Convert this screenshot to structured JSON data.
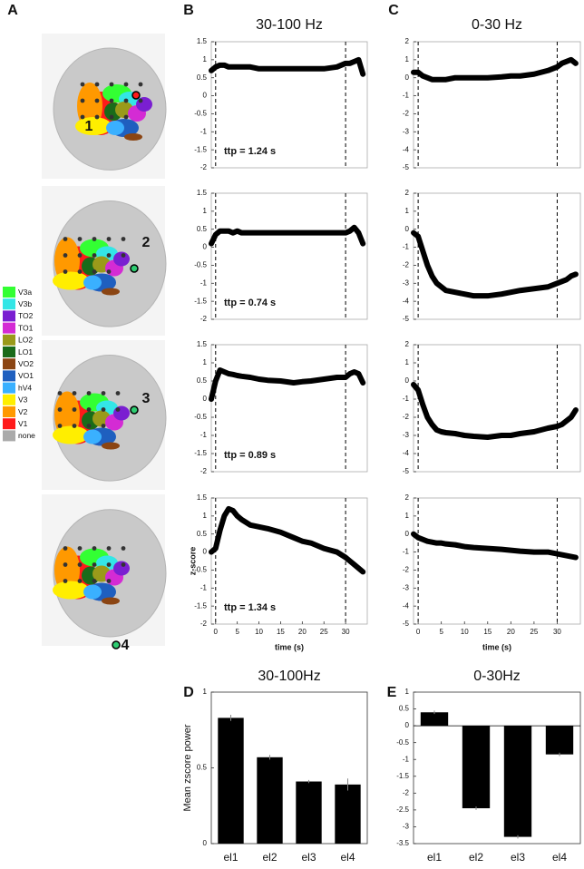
{
  "panel_labels": [
    "A",
    "B",
    "C",
    "D",
    "E"
  ],
  "electrodes": [
    "1",
    "2",
    "3",
    "4"
  ],
  "brain_legend": [
    {
      "label": "V3a",
      "color": "#33ff33"
    },
    {
      "label": "V3b",
      "color": "#33e6e6"
    },
    {
      "label": "TO2",
      "color": "#7a1fd1"
    },
    {
      "label": "TO1",
      "color": "#d42bd4"
    },
    {
      "label": "LO2",
      "color": "#9a9a1a"
    },
    {
      "label": "LO1",
      "color": "#1a6b1a"
    },
    {
      "label": "VO2",
      "color": "#8b4513"
    },
    {
      "label": "VO1",
      "color": "#1f5fbf"
    },
    {
      "label": "hV4",
      "color": "#3ab0ff"
    },
    {
      "label": "V3",
      "color": "#ffee00"
    },
    {
      "label": "V2",
      "color": "#ff9900"
    },
    {
      "label": "V1",
      "color": "#ff1a1a"
    },
    {
      "label": "none",
      "color": "#aaaaaa"
    }
  ],
  "chart_data": [
    {
      "type": "line",
      "title": "30-100 Hz",
      "annotation": "ttp = 1.24 s",
      "color": "#000000",
      "x": [
        -1,
        0,
        1,
        2,
        3,
        4,
        5,
        6,
        8,
        10,
        12,
        15,
        18,
        20,
        22,
        25,
        28,
        30,
        31,
        32,
        33,
        34
      ],
      "values": [
        0.7,
        0.8,
        0.85,
        0.85,
        0.8,
        0.8,
        0.8,
        0.8,
        0.8,
        0.75,
        0.75,
        0.75,
        0.75,
        0.75,
        0.75,
        0.75,
        0.8,
        0.9,
        0.9,
        0.95,
        1.0,
        0.6
      ],
      "vlines": [
        0,
        30
      ],
      "xlim": [
        -1,
        35
      ],
      "ylim": [
        -2,
        1.5
      ],
      "yticks": [
        -2,
        -1.5,
        -1,
        -0.5,
        0,
        0.5,
        1,
        1.5
      ]
    },
    {
      "type": "line",
      "annotation": "ttp = 0.74 s",
      "color": "#000000",
      "x": [
        -1,
        0,
        1,
        2,
        3,
        4,
        5,
        6,
        8,
        10,
        12,
        15,
        18,
        20,
        22,
        25,
        28,
        30,
        31,
        32,
        33,
        34
      ],
      "values": [
        0.1,
        0.35,
        0.45,
        0.45,
        0.45,
        0.4,
        0.45,
        0.4,
        0.4,
        0.4,
        0.4,
        0.4,
        0.4,
        0.4,
        0.4,
        0.4,
        0.4,
        0.4,
        0.45,
        0.55,
        0.4,
        0.1
      ],
      "vlines": [
        0,
        30
      ],
      "xlim": [
        -1,
        35
      ],
      "ylim": [
        -2,
        1.5
      ],
      "yticks": [
        -2,
        -1.5,
        -1,
        -0.5,
        0,
        0.5,
        1,
        1.5
      ]
    },
    {
      "type": "line",
      "annotation": "ttp = 0.89 s",
      "color": "#000000",
      "x": [
        -1,
        0,
        1,
        2,
        3,
        4,
        5,
        6,
        8,
        10,
        12,
        15,
        18,
        20,
        22,
        25,
        28,
        30,
        31,
        32,
        33,
        34
      ],
      "values": [
        0.0,
        0.5,
        0.8,
        0.75,
        0.7,
        0.68,
        0.65,
        0.63,
        0.6,
        0.55,
        0.52,
        0.5,
        0.45,
        0.48,
        0.5,
        0.55,
        0.6,
        0.6,
        0.7,
        0.75,
        0.7,
        0.45
      ],
      "vlines": [
        0,
        30
      ],
      "xlim": [
        -1,
        35
      ],
      "ylim": [
        -2,
        1.5
      ],
      "yticks": [
        -2,
        -1.5,
        -1,
        -0.5,
        0,
        0.5,
        1,
        1.5
      ]
    },
    {
      "type": "line",
      "annotation": "ttp = 1.34 s",
      "xlabel": "time (s)",
      "ylabel": "z-score",
      "color": "#000000",
      "x": [
        -1,
        0,
        1,
        2,
        3,
        4,
        5,
        6,
        8,
        10,
        12,
        15,
        18,
        20,
        22,
        25,
        28,
        30,
        31,
        32,
        33,
        34
      ],
      "values": [
        0.0,
        0.1,
        0.6,
        1.0,
        1.2,
        1.15,
        1.0,
        0.9,
        0.75,
        0.7,
        0.65,
        0.55,
        0.4,
        0.3,
        0.25,
        0.1,
        0.0,
        -0.15,
        -0.25,
        -0.35,
        -0.45,
        -0.55
      ],
      "vlines": [
        0,
        30
      ],
      "xlim": [
        -1,
        35
      ],
      "xticks": [
        0,
        5,
        10,
        15,
        20,
        25,
        30
      ],
      "ylim": [
        -2,
        1.5
      ],
      "yticks": [
        -2,
        -1.5,
        -1,
        -0.5,
        0,
        0.5,
        1,
        1.5
      ]
    },
    {
      "type": "line",
      "title": "0-30 Hz",
      "color": "#000000",
      "x": [
        -1,
        0,
        1,
        2,
        3,
        4,
        5,
        6,
        8,
        10,
        12,
        15,
        18,
        20,
        22,
        25,
        28,
        30,
        31,
        32,
        33,
        34
      ],
      "values": [
        0.3,
        0.3,
        0.1,
        0.0,
        -0.1,
        -0.1,
        -0.1,
        -0.1,
        0.0,
        0.0,
        0.0,
        0.0,
        0.05,
        0.1,
        0.1,
        0.2,
        0.4,
        0.6,
        0.8,
        0.9,
        1.0,
        0.8
      ],
      "vlines": [
        0,
        30
      ],
      "xlim": [
        -1,
        35
      ],
      "ylim": [
        -5,
        2
      ],
      "yticks": [
        -5,
        -4,
        -3,
        -2,
        -1,
        0,
        1,
        2
      ]
    },
    {
      "type": "line",
      "color": "#000000",
      "x": [
        -1,
        0,
        1,
        2,
        3,
        4,
        5,
        6,
        8,
        10,
        12,
        15,
        18,
        20,
        22,
        25,
        28,
        30,
        31,
        32,
        33,
        34
      ],
      "values": [
        -0.2,
        -0.4,
        -1.2,
        -2.0,
        -2.6,
        -3.0,
        -3.2,
        -3.4,
        -3.5,
        -3.6,
        -3.7,
        -3.7,
        -3.6,
        -3.5,
        -3.4,
        -3.3,
        -3.2,
        -3.0,
        -2.9,
        -2.8,
        -2.6,
        -2.5
      ],
      "vlines": [
        0,
        30
      ],
      "xlim": [
        -1,
        35
      ],
      "ylim": [
        -5,
        2
      ],
      "yticks": [
        -5,
        -4,
        -3,
        -2,
        -1,
        0,
        1,
        2
      ]
    },
    {
      "type": "line",
      "color": "#000000",
      "x": [
        -1,
        0,
        1,
        2,
        3,
        4,
        5,
        6,
        8,
        10,
        12,
        15,
        18,
        20,
        22,
        25,
        28,
        30,
        31,
        32,
        33,
        34
      ],
      "values": [
        -0.2,
        -0.5,
        -1.3,
        -2.0,
        -2.4,
        -2.7,
        -2.8,
        -2.85,
        -2.9,
        -3.0,
        -3.05,
        -3.1,
        -3.0,
        -3.0,
        -2.9,
        -2.8,
        -2.6,
        -2.5,
        -2.4,
        -2.2,
        -2.0,
        -1.6
      ],
      "vlines": [
        0,
        30
      ],
      "xlim": [
        -1,
        35
      ],
      "ylim": [
        -5,
        2
      ],
      "yticks": [
        -5,
        -4,
        -3,
        -2,
        -1,
        0,
        1,
        2
      ]
    },
    {
      "type": "line",
      "xlabel": "time (s)",
      "color": "#000000",
      "x": [
        -1,
        0,
        1,
        2,
        3,
        4,
        5,
        6,
        8,
        10,
        12,
        15,
        18,
        20,
        22,
        25,
        28,
        30,
        31,
        32,
        33,
        34
      ],
      "values": [
        0.0,
        -0.2,
        -0.3,
        -0.4,
        -0.45,
        -0.5,
        -0.5,
        -0.55,
        -0.6,
        -0.7,
        -0.75,
        -0.8,
        -0.85,
        -0.9,
        -0.95,
        -1.0,
        -1.0,
        -1.1,
        -1.15,
        -1.2,
        -1.25,
        -1.3
      ],
      "vlines": [
        0,
        30
      ],
      "xlim": [
        -1,
        35
      ],
      "xticks": [
        0,
        5,
        10,
        15,
        20,
        25,
        30
      ],
      "ylim": [
        -5,
        2
      ],
      "yticks": [
        -5,
        -4,
        -3,
        -2,
        -1,
        0,
        1,
        2
      ]
    },
    {
      "type": "bar",
      "title": "30-100Hz",
      "ylabel": "Mean zscore power",
      "color": "#000000",
      "categories": [
        "el1",
        "el2",
        "el3",
        "el4"
      ],
      "values": [
        0.83,
        0.57,
        0.41,
        0.39
      ],
      "errors": [
        0.02,
        0.015,
        0.01,
        0.04
      ],
      "ylim": [
        0,
        1
      ],
      "yticks": [
        0,
        0.5,
        1
      ]
    },
    {
      "type": "bar",
      "title": "0-30Hz",
      "color": "#000000",
      "categories": [
        "el1",
        "el2",
        "el3",
        "el4"
      ],
      "values": [
        0.4,
        -2.45,
        -3.3,
        -0.85
      ],
      "errors": [
        0.05,
        0.05,
        0.05,
        0.05
      ],
      "ylim": [
        -3.5,
        1
      ],
      "yticks": [
        -3.5,
        -3,
        -2.5,
        -2,
        -1.5,
        -1,
        -0.5,
        0,
        0.5,
        1
      ]
    }
  ]
}
